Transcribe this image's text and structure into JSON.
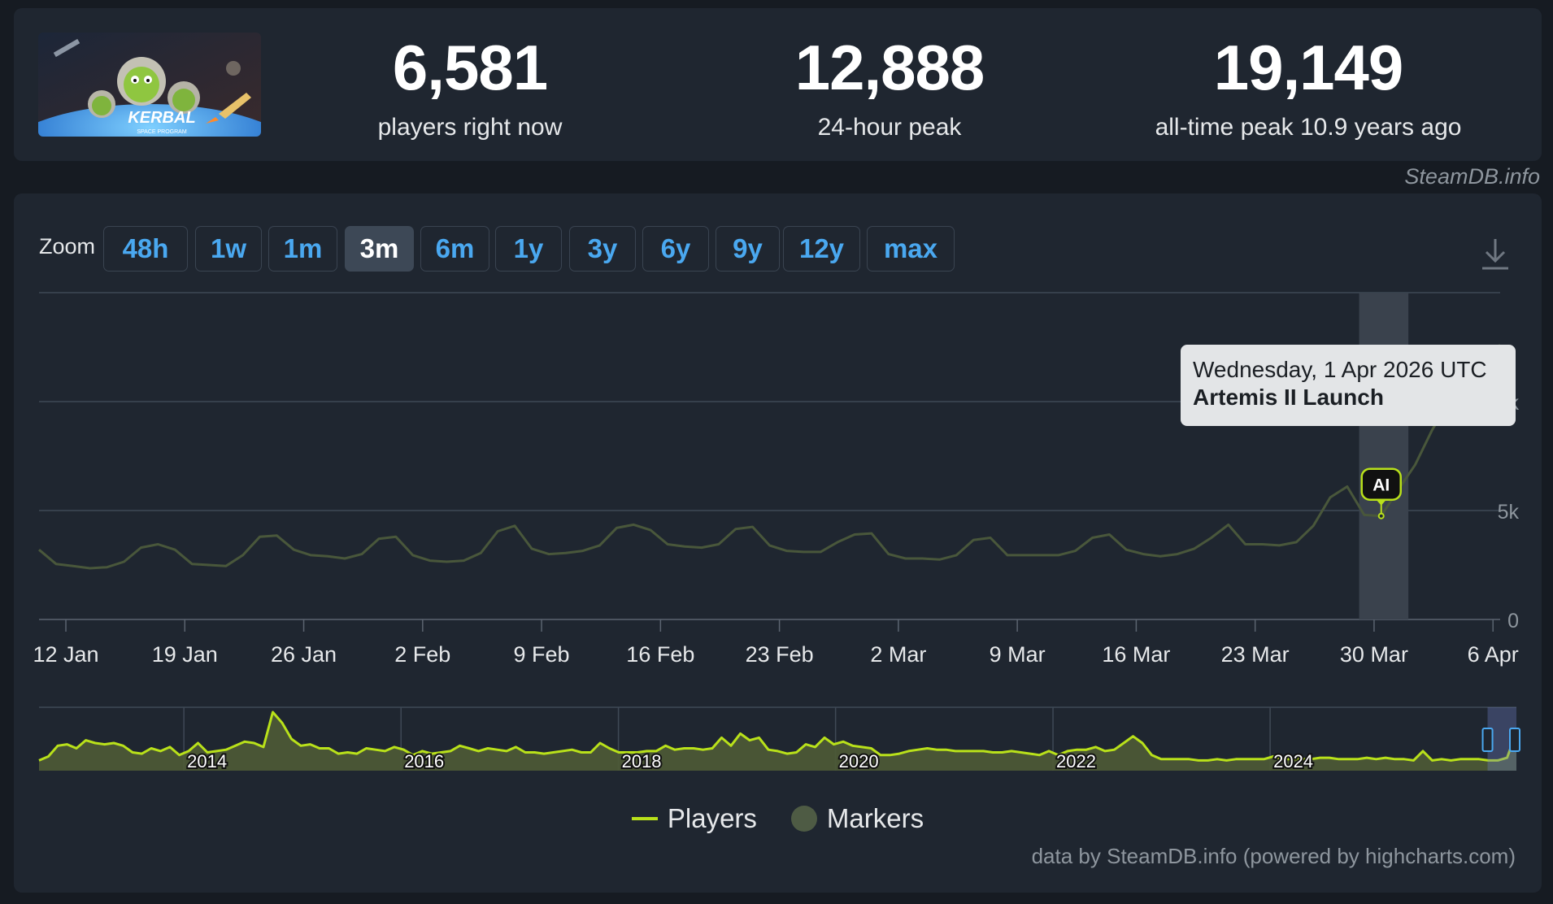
{
  "stats": {
    "current": {
      "value": "6,581",
      "label": "players right now"
    },
    "peak24": {
      "value": "12,888",
      "label": "24-hour peak"
    },
    "alltime": {
      "value": "19,149",
      "label": "all-time peak 10.9 years ago"
    }
  },
  "game_art": {
    "text": "KERBAL",
    "subtext": "SPACE PROGRAM"
  },
  "credit_top": "SteamDB.info",
  "zoom": {
    "label": "Zoom",
    "options": [
      "48h",
      "1w",
      "1m",
      "3m",
      "6m",
      "1y",
      "3y",
      "6y",
      "9y",
      "12y",
      "max"
    ],
    "active": "3m"
  },
  "tooltip": {
    "date": "Wednesday, 1 Apr 2026 UTC",
    "title": "Artemis II Launch"
  },
  "marker_label": "AI",
  "legend": {
    "players": "Players",
    "markers": "Markers"
  },
  "credit_bottom": "data by SteamDB.info (powered by highcharts.com)",
  "colors": {
    "players": "#b9e11a",
    "markers": "#4e5b44",
    "line_dim": "#49573b",
    "accent": "#4aa8f0"
  },
  "chart_data": {
    "type": "line",
    "series": [
      {
        "name": "Players",
        "x": [
          "2026-01-12",
          "2026-01-13",
          "2026-01-14",
          "2026-01-15",
          "2026-01-16",
          "2026-01-17",
          "2026-01-18",
          "2026-01-19",
          "2026-01-20",
          "2026-01-21",
          "2026-01-22",
          "2026-01-23",
          "2026-01-24",
          "2026-01-25",
          "2026-01-26",
          "2026-01-27",
          "2026-01-28",
          "2026-01-29",
          "2026-01-30",
          "2026-01-31",
          "2026-02-01",
          "2026-02-02",
          "2026-02-03",
          "2026-02-04",
          "2026-02-05",
          "2026-02-06",
          "2026-02-07",
          "2026-02-08",
          "2026-02-09",
          "2026-02-10",
          "2026-02-11",
          "2026-02-12",
          "2026-02-13",
          "2026-02-14",
          "2026-02-15",
          "2026-02-16",
          "2026-02-17",
          "2026-02-18",
          "2026-02-19",
          "2026-02-20",
          "2026-02-21",
          "2026-02-22",
          "2026-02-23",
          "2026-02-24",
          "2026-02-25",
          "2026-02-26",
          "2026-02-27",
          "2026-02-28",
          "2026-03-01",
          "2026-03-02",
          "2026-03-03",
          "2026-03-04",
          "2026-03-05",
          "2026-03-06",
          "2026-03-07",
          "2026-03-08",
          "2026-03-09",
          "2026-03-10",
          "2026-03-11",
          "2026-03-12",
          "2026-03-13",
          "2026-03-14",
          "2026-03-15",
          "2026-03-16",
          "2026-03-17",
          "2026-03-18",
          "2026-03-19",
          "2026-03-20",
          "2026-03-21",
          "2026-03-22",
          "2026-03-23",
          "2026-03-24",
          "2026-03-25",
          "2026-03-26",
          "2026-03-27",
          "2026-03-28",
          "2026-03-29",
          "2026-03-30",
          "2026-03-31",
          "2026-04-01",
          "2026-04-02",
          "2026-04-03",
          "2026-04-04",
          "2026-04-05",
          "2026-04-06",
          "2026-04-07",
          "2026-04-08"
        ],
        "y": [
          3200,
          2550,
          2450,
          2350,
          2400,
          2650,
          3300,
          3450,
          3200,
          2550,
          2500,
          2450,
          2950,
          3800,
          3850,
          3200,
          2950,
          2900,
          2800,
          3000,
          3700,
          3800,
          2950,
          2700,
          2650,
          2700,
          3050,
          4050,
          4300,
          3250,
          3000,
          3050,
          3150,
          3400,
          4200,
          4350,
          4100,
          3450,
          3350,
          3300,
          3450,
          4150,
          4250,
          3400,
          3150,
          3100,
          3100,
          3550,
          3900,
          3950,
          3000,
          2800,
          2800,
          2750,
          2950,
          3650,
          3750,
          2950,
          2950,
          2950,
          2950,
          3150,
          3750,
          3900,
          3200,
          3000,
          2900,
          3000,
          3250,
          3750,
          4350,
          3450,
          3450,
          3400,
          3550,
          4300,
          5600,
          6100,
          4800,
          4750,
          5950,
          7100,
          8700,
          10000,
          11100,
          12000,
          12600
        ]
      }
    ],
    "markers": [
      {
        "x": "2026-04-01",
        "label": "AI",
        "title": "Artemis II Launch"
      }
    ],
    "x_ticks": [
      "12 Jan",
      "19 Jan",
      "26 Jan",
      "2 Feb",
      "9 Feb",
      "16 Feb",
      "23 Feb",
      "2 Mar",
      "9 Mar",
      "16 Mar",
      "23 Mar",
      "30 Mar",
      "6 Apr"
    ],
    "y_ticks": [
      "0",
      "5k",
      "10k"
    ],
    "ylim": [
      0,
      15000
    ],
    "grid": true,
    "legend_position": "bottom",
    "navigator": {
      "years": [
        "2014",
        "2016",
        "2018",
        "2020",
        "2022",
        "2024"
      ],
      "x_start": "2012-09-01",
      "x_end": "2026-04-08",
      "values": [
        2000,
        3500,
        7500,
        8000,
        6500,
        9500,
        8500,
        8000,
        8500,
        7500,
        5000,
        4500,
        6500,
        5500,
        7000,
        4000,
        5500,
        8500,
        5000,
        5500,
        6000,
        7500,
        9000,
        8500,
        7000,
        20000,
        16000,
        10000,
        7500,
        8000,
        6500,
        6500,
        4500,
        5000,
        4500,
        6500,
        6000,
        5500,
        7000,
        6000,
        4000,
        5500,
        4500,
        5000,
        5500,
        7500,
        6500,
        5500,
        6500,
        6000,
        5500,
        7000,
        5000,
        5000,
        4500,
        5000,
        5500,
        6000,
        5000,
        5000,
        8500,
        6500,
        5000,
        5000,
        5000,
        5500,
        5500,
        7500,
        6000,
        6500,
        6500,
        6000,
        6500,
        10500,
        7500,
        12000,
        9500,
        10500,
        6000,
        5500,
        4500,
        5000,
        8000,
        7000,
        10500,
        8000,
        9000,
        7500,
        7000,
        6500,
        4000,
        4000,
        4500,
        5500,
        6000,
        6500,
        6000,
        6000,
        5500,
        5500,
        5500,
        5500,
        5000,
        5000,
        5500,
        5000,
        4500,
        4000,
        5500,
        4000,
        5500,
        6000,
        6000,
        7000,
        5500,
        6000,
        8500,
        11000,
        8500,
        4000,
        2500,
        2500,
        2500,
        2500,
        2000,
        2000,
        2500,
        2000,
        2500,
        2500,
        2500,
        2500,
        3500,
        2500,
        2500,
        2500,
        2500,
        3000,
        3000,
        2500,
        2500,
        2500,
        3000,
        2500,
        3000,
        2500,
        2500,
        2000,
        5500,
        2000,
        2500,
        2000,
        2500,
        2500,
        2500,
        2000,
        2000,
        3000,
        12600
      ]
    }
  }
}
